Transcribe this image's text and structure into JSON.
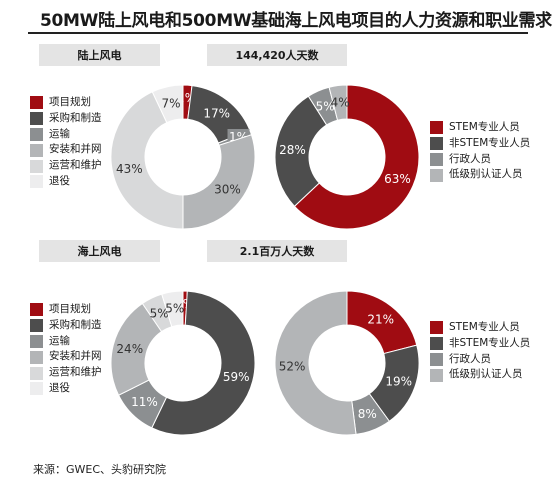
{
  "title": "50MW陆上风电和500MW基础海上风电项目的人力资源和职业需求",
  "source": "来源：GWEC、头豹研究院",
  "colors": {
    "dark_red": "#a00c12",
    "dark_gray": "#4d4d4d",
    "mid_gray": "#8c8f91",
    "light_gray": "#b3b5b7",
    "lighter_gray": "#d8d9da",
    "lightest_gray": "#ededee"
  },
  "chart_data": [
    {
      "type": "pie",
      "donut": true,
      "title": "陆上风电",
      "categories": [
        "项目规划",
        "采购和制造",
        "运输",
        "安装和并网",
        "运营和维护",
        "退役"
      ],
      "values": [
        2,
        17,
        1,
        30,
        43,
        7
      ],
      "labels": [
        "2%",
        "17%",
        "1%",
        "30%",
        "43%",
        "7%"
      ],
      "legend_position": "left"
    },
    {
      "type": "pie",
      "donut": true,
      "title": "144,420人天数",
      "categories": [
        "STEM专业人员",
        "非STEM专业人员",
        "行政人员",
        "低级别认证人员"
      ],
      "values": [
        63,
        28,
        5,
        4
      ],
      "labels": [
        "63%",
        "28%",
        "5%",
        "4%"
      ],
      "legend_position": "right"
    },
    {
      "type": "pie",
      "donut": true,
      "title": "海上风电",
      "categories": [
        "项目规划",
        "采购和制造",
        "运输",
        "安装和并网",
        "运营和维护",
        "退役"
      ],
      "values": [
        1,
        59,
        11,
        24,
        5,
        5
      ],
      "labels": [
        "1%",
        "59%",
        "11%",
        "24%",
        "5%",
        "5%"
      ],
      "legend_position": "left"
    },
    {
      "type": "pie",
      "donut": true,
      "title": "2.1百万人天数",
      "categories": [
        "STEM专业人员",
        "非STEM专业人员",
        "行政人员",
        "低级别认证人员"
      ],
      "values": [
        21,
        19,
        8,
        52
      ],
      "labels": [
        "21%",
        "19%",
        "8%",
        "52%"
      ],
      "legend_position": "right"
    }
  ]
}
